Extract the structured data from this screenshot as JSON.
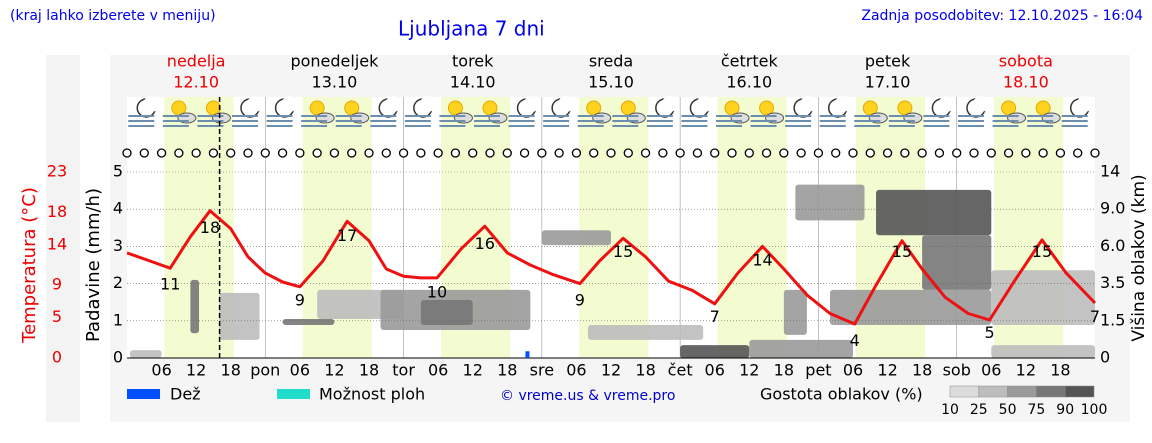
{
  "chart_data": {
    "type": "line",
    "subtitle": "(kraj lahko izberete v meniju)",
    "title": "Ljubljana 7 dni",
    "updated": "Zadnja posodobitev: 12.10.2025 - 16:04",
    "credit": "© vreme.us & vreme.pro",
    "days": [
      {
        "name": "nedelja",
        "date": "12.10",
        "color": "#ee0000"
      },
      {
        "name": "ponedeljek",
        "date": "13.10",
        "color": "#000000"
      },
      {
        "name": "torek",
        "date": "14.10",
        "color": "#000000"
      },
      {
        "name": "sreda",
        "date": "15.10",
        "color": "#000000"
      },
      {
        "name": "četrtek",
        "date": "16.10",
        "color": "#000000"
      },
      {
        "name": "petek",
        "date": "17.10",
        "color": "#000000"
      },
      {
        "name": "sobota",
        "date": "18.10",
        "color": "#ee0000"
      }
    ],
    "xlim": [
      0,
      168
    ],
    "xticks": [
      {
        "value": 6,
        "label": "06"
      },
      12,
      18,
      {
        "value": 24,
        "label": "pon"
      },
      {
        "value": 30,
        "label": "06"
      },
      {
        "value": 36,
        "label": "12"
      },
      {
        "value": 42,
        "label": "18"
      },
      {
        "value": 48,
        "label": "tor"
      },
      {
        "value": 54,
        "label": "06"
      },
      {
        "value": 60,
        "label": "12"
      },
      {
        "value": 66,
        "label": "18"
      },
      {
        "value": 72,
        "label": "sre"
      },
      {
        "value": 78,
        "label": "06"
      },
      {
        "value": 84,
        "label": "12"
      },
      {
        "value": 90,
        "label": "18"
      },
      {
        "value": 96,
        "label": "čet"
      },
      {
        "value": 102,
        "label": "06"
      },
      {
        "value": 108,
        "label": "12"
      },
      {
        "value": 114,
        "label": "18"
      },
      {
        "value": 120,
        "label": "pet"
      },
      {
        "value": 126,
        "label": "06"
      },
      {
        "value": 132,
        "label": "12"
      },
      {
        "value": 138,
        "label": "18"
      },
      {
        "value": 144,
        "label": "sob"
      },
      {
        "value": 150,
        "label": "06"
      },
      {
        "value": 156,
        "label": "12"
      },
      {
        "value": 162,
        "label": "18"
      }
    ],
    "now": 16.07,
    "daylight": [
      6.5,
      18.5
    ],
    "ylabel": "Temperatura (°C)",
    "ylim": [
      0,
      23
    ],
    "yticks": [
      0,
      5,
      9,
      14,
      18,
      23
    ],
    "precip_label": "Padavine (mm/h)",
    "precip_lim": [
      0,
      5
    ],
    "precip_ticks": [
      0,
      1,
      2,
      3,
      4,
      5
    ],
    "grid": true,
    "y2label": "Višina oblakov (km)",
    "y2ticks": [
      0,
      1.5,
      3.5,
      {
        "value": 6,
        "label": "6.0"
      },
      {
        "value": 9,
        "label": "9.0"
      },
      14
    ],
    "temperature": {
      "color": "#ee1111",
      "x": [
        0,
        4,
        7.5,
        11,
        14.4,
        18,
        21,
        24,
        27,
        30,
        34,
        38.2,
        42,
        45,
        48,
        51,
        53.8,
        58,
        62.1,
        66,
        70,
        74,
        78.6,
        82,
        86.1,
        90,
        94,
        98,
        102,
        106,
        110.3,
        114,
        118,
        122,
        126.3,
        130,
        134.5,
        138,
        142,
        146,
        149.7,
        154,
        158.8,
        163,
        168
      ],
      "values": [
        13.0,
        12.0,
        11.1,
        15.0,
        18.2,
        16.0,
        12.5,
        10.5,
        9.4,
        8.8,
        12.0,
        16.9,
        14.5,
        11.0,
        10.1,
        9.9,
        9.9,
        13.5,
        16.3,
        13.0,
        11.5,
        10.3,
        9.2,
        12.0,
        14.8,
        12.5,
        9.5,
        8.4,
        6.7,
        10.5,
        13.8,
        11.0,
        7.8,
        5.5,
        4.2,
        9.0,
        14.5,
        11.0,
        7.5,
        5.5,
        4.7,
        9.5,
        14.6,
        10.5,
        6.8
      ]
    },
    "extremes": {
      "x": [
        7.5,
        14.4,
        30,
        38.2,
        53.8,
        62.1,
        78.6,
        86.1,
        102,
        110.3,
        126.3,
        134.5,
        149.7,
        158.8,
        168
      ],
      "values": [
        11,
        18,
        9,
        17,
        10,
        16,
        9,
        15,
        7,
        14,
        4,
        15,
        5,
        15,
        7
      ]
    },
    "rain": {
      "name": "Dež",
      "color": "#0050ff",
      "x": [
        69.5
      ],
      "values": [
        0.1
      ]
    },
    "showers": {
      "name": "Možnost ploh",
      "color": "#20dcc8"
    },
    "clouds": {
      "title": "Gostota oblakov (%)",
      "scale": [
        10,
        25,
        50,
        75,
        90,
        100
      ],
      "colors": [
        "#dcdcdc",
        "#bdbdbd",
        "#9a9a9a",
        "#777777",
        "#555555"
      ],
      "cells": [
        [
          0.5,
          6,
          0,
          0.32,
          25
        ],
        [
          11,
          12.5,
          1.0,
          3.75,
          75
        ],
        [
          16,
          23,
          0.73,
          3.0,
          25
        ],
        [
          27,
          36,
          1.33,
          1.6,
          75
        ],
        [
          33,
          48,
          1.6,
          3.16,
          25
        ],
        [
          44,
          70,
          1.13,
          3.16,
          50
        ],
        [
          51,
          60,
          1.33,
          2.62,
          75
        ],
        [
          72,
          84,
          6.1,
          7.3,
          50
        ],
        [
          80,
          100,
          0.73,
          1.33,
          25
        ],
        [
          96,
          108,
          0,
          0.52,
          90
        ],
        [
          108,
          126,
          0,
          0.73,
          50
        ],
        [
          114,
          118,
          0.93,
          3.16,
          50
        ],
        [
          116,
          128,
          8.1,
          12.3,
          50
        ],
        [
          130,
          150,
          6.9,
          11.6,
          90
        ],
        [
          138,
          150,
          3.16,
          6.9,
          75
        ],
        [
          122,
          150,
          1.33,
          3.16,
          50
        ],
        [
          150,
          168,
          1.33,
          4.4,
          25
        ],
        [
          150,
          168,
          0,
          0.52,
          25
        ]
      ]
    }
  }
}
